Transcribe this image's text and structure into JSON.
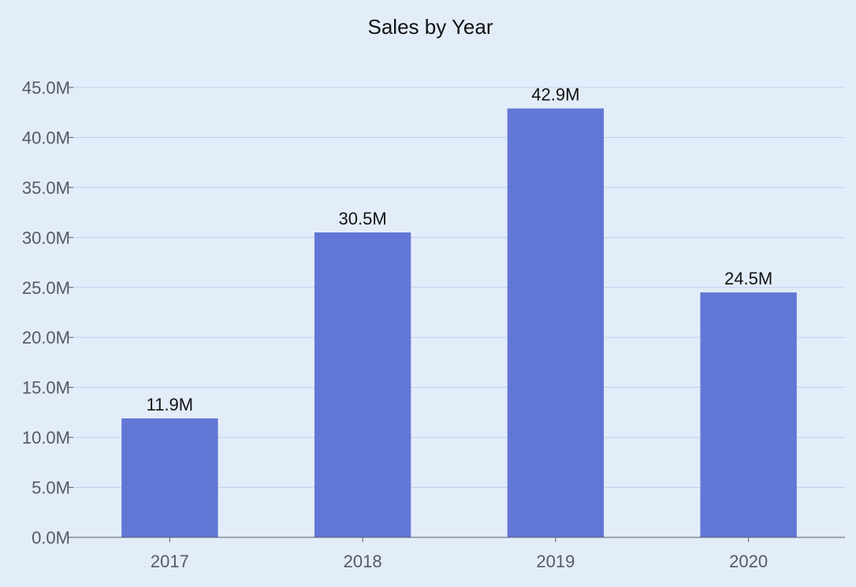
{
  "chart_data": {
    "type": "bar",
    "title": "Sales by Year",
    "xlabel": "",
    "ylabel": "",
    "categories": [
      "2017",
      "2018",
      "2019",
      "2020"
    ],
    "values": [
      11.9,
      30.5,
      42.9,
      24.5
    ],
    "value_labels": [
      "11.9M",
      "30.5M",
      "42.9M",
      "24.5M"
    ],
    "unit": "M",
    "ylim": [
      0,
      45
    ],
    "yticks": [
      0,
      5,
      10,
      15,
      20,
      25,
      30,
      35,
      40,
      45
    ],
    "ytick_labels": [
      "0.0M",
      "5.0M",
      "10.0M",
      "15.0M",
      "20.0M",
      "25.0M",
      "30.0M",
      "35.0M",
      "40.0M",
      "45.0M"
    ],
    "grid": true,
    "legend": "none",
    "colors": {
      "background": "#e3edf9",
      "bar": "#6277d5",
      "grid": "#c2cdef",
      "axis": "#555a66"
    }
  }
}
